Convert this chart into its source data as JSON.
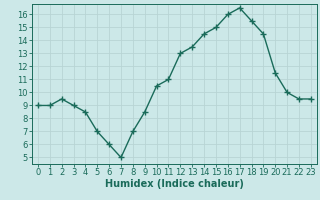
{
  "x": [
    0,
    1,
    2,
    3,
    4,
    5,
    6,
    7,
    8,
    9,
    10,
    11,
    12,
    13,
    14,
    15,
    16,
    17,
    18,
    19,
    20,
    21,
    22,
    23
  ],
  "y": [
    9,
    9,
    9.5,
    9,
    8.5,
    7,
    6,
    5,
    7,
    8.5,
    10.5,
    11,
    13,
    13.5,
    14.5,
    15,
    16,
    16.5,
    15.5,
    14.5,
    11.5,
    10,
    9.5,
    9.5
  ],
  "line_color": "#1a6b5a",
  "marker": "+",
  "marker_size": 4,
  "bg_color": "#cce8e8",
  "grid_color": "#b8d4d4",
  "title": "",
  "xlabel": "Humidex (Indice chaleur)",
  "ylabel": "",
  "xlim": [
    -0.5,
    23.5
  ],
  "ylim": [
    4.5,
    16.8
  ],
  "xticks": [
    0,
    1,
    2,
    3,
    4,
    5,
    6,
    7,
    8,
    9,
    10,
    11,
    12,
    13,
    14,
    15,
    16,
    17,
    18,
    19,
    20,
    21,
    22,
    23
  ],
  "yticks": [
    5,
    6,
    7,
    8,
    9,
    10,
    11,
    12,
    13,
    14,
    15,
    16
  ],
  "tick_color": "#1a6b5a",
  "axis_color": "#1a6b5a",
  "xlabel_fontsize": 7,
  "tick_fontsize": 6,
  "line_width": 1.0,
  "marker_color": "#1a6b5a"
}
